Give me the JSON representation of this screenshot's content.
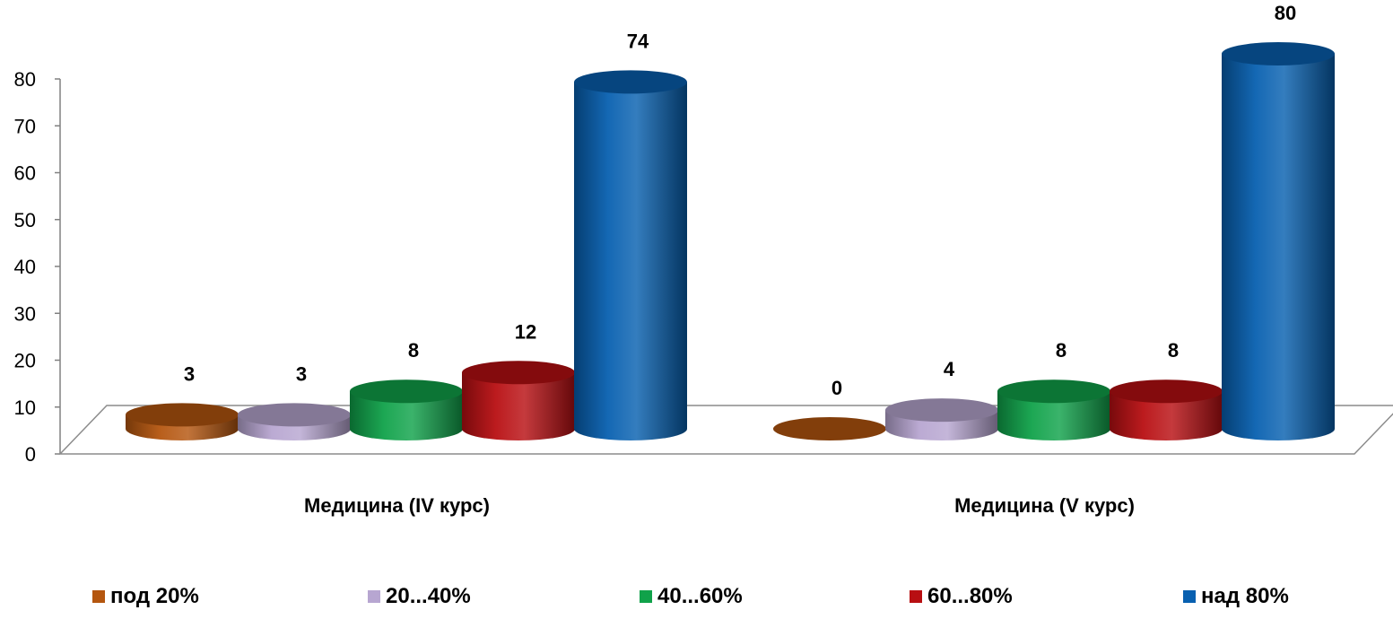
{
  "chart_data": {
    "type": "bar",
    "title": "",
    "xlabel": "",
    "ylabel": "",
    "ylim": [
      0,
      80
    ],
    "yticks": [
      0,
      10,
      20,
      30,
      40,
      50,
      60,
      70,
      80
    ],
    "categories": [
      "Медицина (IV курс)",
      "Медицина (V курс)"
    ],
    "series": [
      {
        "name": "под 20%",
        "color": "#B4560F",
        "values": [
          3,
          0
        ]
      },
      {
        "name": "20...40%",
        "color": "#B7A6D1",
        "values": [
          3,
          4
        ]
      },
      {
        "name": "40...60%",
        "color": "#10A24A",
        "values": [
          8,
          8
        ]
      },
      {
        "name": "60...80%",
        "color": "#B80F12",
        "values": [
          12,
          8
        ]
      },
      {
        "name": "над 80%",
        "color": "#0860B0",
        "values": [
          74,
          80
        ]
      }
    ],
    "legend_position": "bottom",
    "style": "3d-cylinder",
    "grid": false
  }
}
